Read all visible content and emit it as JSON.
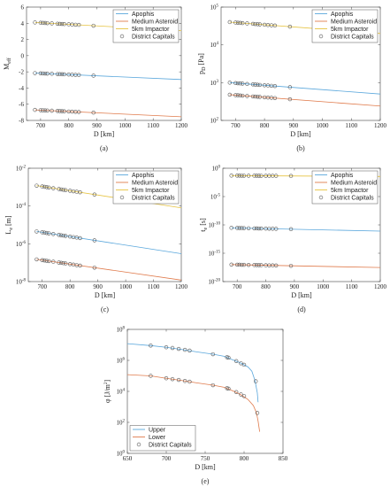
{
  "colors": {
    "blue": "#5aa7dc",
    "orange": "#e07b4c",
    "yellow": "#e6c340",
    "marker": "#555555"
  },
  "chart_data": [
    {
      "id": "a",
      "type": "line",
      "caption": "(a)",
      "xlabel": "D [km]",
      "ylabel": "M_eff",
      "ylabel_main": "M",
      "ylabel_sub": "eff",
      "xlim": [
        650,
        1200
      ],
      "ylim": [
        -8,
        6
      ],
      "xticks": [
        700,
        800,
        900,
        1000,
        1100,
        1200
      ],
      "yticks": [
        -8,
        -6,
        -4,
        -2,
        0,
        2,
        4,
        6
      ],
      "yscale": "linear",
      "legend_position": "top-right",
      "series": [
        {
          "name": "Apophis",
          "color": "blue",
          "x": [
            680,
            1200
          ],
          "y": [
            -2.15,
            -2.95
          ]
        },
        {
          "name": "Medium Asteroid",
          "color": "orange",
          "x": [
            680,
            1200
          ],
          "y": [
            -6.7,
            -7.55
          ]
        },
        {
          "name": "5km Impactor",
          "color": "yellow",
          "x": [
            680,
            1200
          ],
          "y": [
            4.1,
            3.1
          ]
        }
      ],
      "markers": {
        "name": "District Capitals",
        "x": [
          680,
          700,
          708,
          716,
          724,
          740,
          760,
          768,
          776,
          784,
          800,
          812,
          824,
          836,
          888
        ],
        "groups": [
          {
            "x0": 680,
            "y0": -2.15,
            "slope": -0.00154
          },
          {
            "x0": 680,
            "y0": -6.7,
            "slope": -0.00163
          },
          {
            "x0": 680,
            "y0": 4.1,
            "slope": -0.00192
          }
        ]
      }
    },
    {
      "id": "b",
      "type": "line",
      "caption": "(b)",
      "xlabel": "D [km]",
      "ylabel": "p_D [Pa]",
      "ylabel_main": "p",
      "ylabel_sub": "D",
      "ylabel_unit": " [Pa]",
      "xlim": [
        650,
        1200
      ],
      "ylim": [
        100,
        100000
      ],
      "xticks": [
        700,
        800,
        900,
        1000,
        1100,
        1200
      ],
      "yticks": [
        100,
        1000,
        10000,
        100000
      ],
      "ytick_labels": [
        "10^2",
        "10^3",
        "10^4",
        "10^5"
      ],
      "yscale": "log",
      "legend_position": "top-right",
      "series": [
        {
          "name": "Apophis",
          "color": "blue",
          "x": [
            680,
            1200
          ],
          "y": [
            1000,
            500
          ]
        },
        {
          "name": "Medium Asteroid",
          "color": "orange",
          "x": [
            680,
            1200
          ],
          "y": [
            480,
            240
          ]
        },
        {
          "name": "5km Impactor",
          "color": "yellow",
          "x": [
            680,
            1200
          ],
          "y": [
            40000,
            20000
          ]
        }
      ],
      "markers": {
        "name": "District Capitals",
        "x": [
          680,
          700,
          708,
          716,
          724,
          740,
          760,
          768,
          776,
          784,
          800,
          812,
          824,
          836,
          888
        ],
        "groups": [
          {
            "x0": 680,
            "y0": 1000,
            "x1": 1200,
            "y1": 500
          },
          {
            "x0": 680,
            "y0": 480,
            "x1": 1200,
            "y1": 240
          },
          {
            "x0": 680,
            "y0": 40000,
            "x1": 1200,
            "y1": 20000
          }
        ]
      }
    },
    {
      "id": "c",
      "type": "line",
      "caption": "(c)",
      "xlabel": "D [km]",
      "ylabel": "L_e [m]",
      "ylabel_main": "L",
      "ylabel_sub": "e",
      "ylabel_unit": " [m]",
      "xlim": [
        650,
        1200
      ],
      "ylim": [
        1e-08,
        0.01
      ],
      "xticks": [
        700,
        800,
        900,
        1000,
        1100,
        1200
      ],
      "yticks": [
        1e-08,
        1e-06,
        0.0001,
        0.01
      ],
      "ytick_labels": [
        "10^-8",
        "10^-6",
        "10^-4",
        "10^-2"
      ],
      "yscale": "log",
      "legend_position": "top-right",
      "series": [
        {
          "name": "Apophis",
          "color": "blue",
          "x": [
            680,
            1200
          ],
          "y": [
            4.5e-06,
            3e-07
          ]
        },
        {
          "name": "Medium Asteroid",
          "color": "orange",
          "x": [
            680,
            1200
          ],
          "y": [
            1.5e-07,
            1.2e-08
          ]
        },
        {
          "name": "5km Impactor",
          "color": "yellow",
          "x": [
            680,
            1200
          ],
          "y": [
            0.0012,
            8e-05
          ]
        }
      ],
      "markers": {
        "name": "District Capitals",
        "x": [
          680,
          700,
          708,
          716,
          724,
          740,
          760,
          768,
          776,
          784,
          800,
          812,
          824,
          836,
          888
        ],
        "groups": [
          {
            "x0": 680,
            "y0": 4.5e-06,
            "x1": 1200,
            "y1": 3e-07
          },
          {
            "x0": 680,
            "y0": 1.5e-07,
            "x1": 1200,
            "y1": 1.2e-08
          },
          {
            "x0": 680,
            "y0": 0.0012,
            "x1": 1200,
            "y1": 8e-05
          }
        ]
      }
    },
    {
      "id": "d",
      "type": "line",
      "caption": "(d)",
      "xlabel": "D [km]",
      "ylabel": "t_e [s]",
      "ylabel_main": "t",
      "ylabel_sub": "e",
      "ylabel_unit": " [s]",
      "xlim": [
        650,
        1200
      ],
      "ylim": [
        1e-20,
        1
      ],
      "xticks": [
        700,
        800,
        900,
        1000,
        1100,
        1200
      ],
      "yticks": [
        1e-20,
        1e-15,
        1e-10,
        1e-05,
        1
      ],
      "ytick_labels": [
        "10^-20",
        "10^-15",
        "10^-10",
        "10^-5",
        "10^0"
      ],
      "yscale": "log",
      "legend_position": "top-right",
      "series": [
        {
          "name": "Apophis",
          "color": "blue",
          "x": [
            680,
            1200
          ],
          "y": [
            3e-11,
            8e-12
          ]
        },
        {
          "name": "Medium Asteroid",
          "color": "orange",
          "x": [
            680,
            1200
          ],
          "y": [
            1e-17,
            3e-18
          ]
        },
        {
          "name": "5km Impactor",
          "color": "yellow",
          "x": [
            680,
            1200
          ],
          "y": [
            0.05,
            0.035
          ]
        }
      ],
      "markers": {
        "name": "District Capitals",
        "x": [
          680,
          700,
          708,
          716,
          724,
          740,
          760,
          768,
          776,
          784,
          800,
          812,
          824,
          836,
          888
        ],
        "groups": [
          {
            "x0": 680,
            "y0": 3e-11,
            "x1": 1200,
            "y1": 8e-12
          },
          {
            "x0": 680,
            "y0": 1e-17,
            "x1": 1200,
            "y1": 3e-18
          },
          {
            "x0": 680,
            "y0": 0.05,
            "x1": 1200,
            "y1": 0.035
          }
        ]
      }
    },
    {
      "id": "e",
      "type": "line",
      "caption": "(e)",
      "xlabel": "D [km]",
      "ylabel": "φ [J/m^2]",
      "ylabel_main": "φ [J/m",
      "ylabel_sup": "2",
      "ylabel_unit": "]",
      "xlim": [
        650,
        850
      ],
      "ylim": [
        1,
        100000000
      ],
      "xticks": [
        650,
        700,
        750,
        800,
        850
      ],
      "yticks": [
        1,
        100,
        10000,
        1000000,
        100000000
      ],
      "ytick_labels": [
        "10^0",
        "10^2",
        "10^4",
        "10^6",
        "10^8"
      ],
      "yscale": "log",
      "legend_position": "bottom-left",
      "series": [
        {
          "name": "Upper",
          "color": "blue",
          "x": [
            650,
            680,
            700,
            720,
            740,
            760,
            775,
            785,
            795,
            805,
            810,
            814,
            817,
            818
          ],
          "y": [
            12000000,
            9000000,
            7000000,
            5000000,
            3500000,
            2500000,
            1800000,
            1100000,
            700000,
            380000,
            200000,
            50000,
            8000,
            2000
          ]
        },
        {
          "name": "Lower",
          "color": "orange",
          "x": [
            650,
            680,
            700,
            720,
            740,
            760,
            775,
            785,
            795,
            805,
            812,
            816,
            818,
            820
          ],
          "y": [
            120000,
            100000,
            70000,
            50000,
            35000,
            25000,
            18000,
            11000,
            6500,
            3000,
            1200,
            400,
            120,
            25
          ]
        }
      ],
      "markers": {
        "name": "District Capitals",
        "points": [
          {
            "x": 680,
            "y": 9000000
          },
          {
            "x": 700,
            "y": 7000000
          },
          {
            "x": 708,
            "y": 6300000
          },
          {
            "x": 716,
            "y": 5500000
          },
          {
            "x": 724,
            "y": 4800000
          },
          {
            "x": 730,
            "y": 4300000
          },
          {
            "x": 760,
            "y": 2500000
          },
          {
            "x": 778,
            "y": 1600000
          },
          {
            "x": 780,
            "y": 1500000
          },
          {
            "x": 790,
            "y": 900000
          },
          {
            "x": 796,
            "y": 650000
          },
          {
            "x": 800,
            "y": 520000
          },
          {
            "x": 815,
            "y": 45000
          },
          {
            "x": 680,
            "y": 100000
          },
          {
            "x": 700,
            "y": 70000
          },
          {
            "x": 708,
            "y": 62000
          },
          {
            "x": 716,
            "y": 55000
          },
          {
            "x": 724,
            "y": 47000
          },
          {
            "x": 730,
            "y": 42000
          },
          {
            "x": 760,
            "y": 25000
          },
          {
            "x": 778,
            "y": 16000
          },
          {
            "x": 780,
            "y": 15000
          },
          {
            "x": 790,
            "y": 9000
          },
          {
            "x": 796,
            "y": 6300
          },
          {
            "x": 800,
            "y": 5000
          },
          {
            "x": 817,
            "y": 400
          }
        ]
      }
    }
  ]
}
